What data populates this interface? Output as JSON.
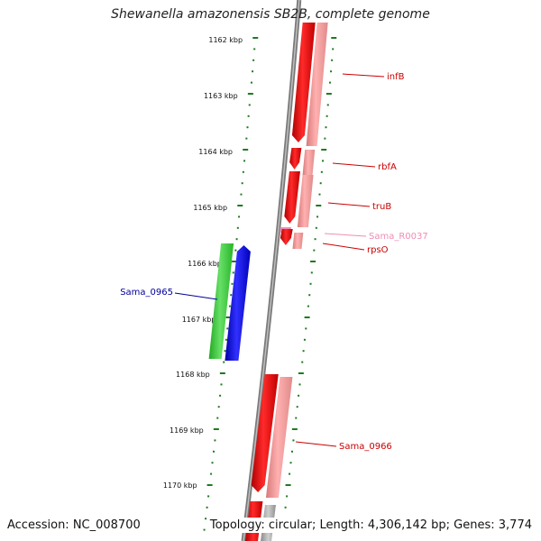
{
  "title": "Shewanella amazonensis SB2B, complete genome",
  "footer": {
    "accession": "Accession: NC_008700",
    "stats": "Topology: circular; Length: 4,306,142 bp; Genes: 3,774"
  },
  "scale": {
    "unit": "kbp",
    "labels": [
      "1162 kbp",
      "1163 kbp",
      "1164 kbp",
      "1165 kbp",
      "1166 kbp",
      "1167 kbp",
      "1168 kbp",
      "1169 kbp",
      "1170 kbp"
    ]
  },
  "genes": [
    {
      "name": "infB",
      "color": "#cc0000",
      "strand": "reverse"
    },
    {
      "name": "rbfA",
      "color": "#cc0000",
      "strand": "reverse"
    },
    {
      "name": "truB",
      "color": "#cc0000",
      "strand": "reverse"
    },
    {
      "name": "Sama_R0037",
      "color": "#f08cb4",
      "strand": "reverse"
    },
    {
      "name": "rpsO",
      "color": "#cc0000",
      "strand": "reverse"
    },
    {
      "name": "Sama_0965",
      "color": "#000099",
      "strand": "forward"
    },
    {
      "name": "Sama_0966",
      "color": "#cc0000",
      "strand": "reverse"
    }
  ],
  "colors": {
    "forward_cds": "#0000ee",
    "forward_feature": "#33cc33",
    "reverse_cds": "#ee0000",
    "reverse_feature": "#f09090",
    "rna": "#f08cb4",
    "backbone": "#7a7a7a",
    "ticks": "#1f7a1f"
  }
}
